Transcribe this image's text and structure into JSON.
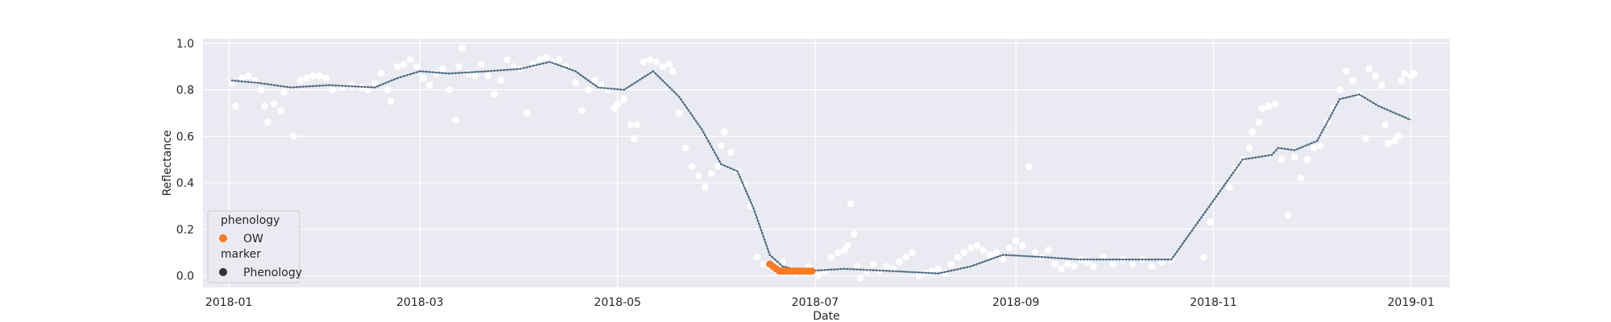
{
  "chart_data": {
    "type": "scatter",
    "title": "",
    "xlabel": "Date",
    "ylabel": "Reflectance",
    "xlim": [
      "2017-12-24",
      "2019-01-13"
    ],
    "ylim": [
      -0.05,
      1.02
    ],
    "grid": true,
    "background": "#eaeaf2",
    "x_ticks": [
      "2018-01",
      "2018-03",
      "2018-05",
      "2018-07",
      "2018-09",
      "2018-11",
      "2019-01"
    ],
    "y_ticks": [
      "0.0",
      "0.2",
      "0.4",
      "0.6",
      "0.8",
      "1.0"
    ],
    "legend": {
      "placement": "lower-left",
      "sections": [
        {
          "title": "phenology",
          "entries": [
            {
              "label": "OW",
              "color": "#f97b22",
              "marker": "circle"
            }
          ]
        },
        {
          "title": "marker",
          "entries": [
            {
              "label": "Phenology",
              "color": "#333333",
              "marker": "circle"
            }
          ]
        }
      ]
    },
    "series": [
      {
        "kind": "observations",
        "color": "#ffffff",
        "points": [
          [
            "2018-01-02",
            0.83
          ],
          [
            "2018-01-03",
            0.73
          ],
          [
            "2018-01-05",
            0.85
          ],
          [
            "2018-01-07",
            0.86
          ],
          [
            "2018-01-09",
            0.84
          ],
          [
            "2018-01-11",
            0.8
          ],
          [
            "2018-01-12",
            0.73
          ],
          [
            "2018-01-13",
            0.66
          ],
          [
            "2018-01-15",
            0.74
          ],
          [
            "2018-01-17",
            0.71
          ],
          [
            "2018-01-18",
            0.79
          ],
          [
            "2018-01-21",
            0.6
          ],
          [
            "2018-01-23",
            0.84
          ],
          [
            "2018-01-25",
            0.85
          ],
          [
            "2018-01-27",
            0.86
          ],
          [
            "2018-01-29",
            0.86
          ],
          [
            "2018-01-31",
            0.85
          ],
          [
            "2018-02-02",
            0.8
          ],
          [
            "2018-02-05",
            0.81
          ],
          [
            "2018-02-08",
            0.82
          ],
          [
            "2018-02-11",
            0.81
          ],
          [
            "2018-02-13",
            0.8
          ],
          [
            "2018-02-15",
            0.83
          ],
          [
            "2018-02-17",
            0.87
          ],
          [
            "2018-02-19",
            0.8
          ],
          [
            "2018-02-20",
            0.75
          ],
          [
            "2018-02-22",
            0.9
          ],
          [
            "2018-02-24",
            0.91
          ],
          [
            "2018-02-26",
            0.93
          ],
          [
            "2018-02-28",
            0.9
          ],
          [
            "2018-03-02",
            0.85
          ],
          [
            "2018-03-04",
            0.82
          ],
          [
            "2018-03-06",
            0.87
          ],
          [
            "2018-03-08",
            0.89
          ],
          [
            "2018-03-10",
            0.8
          ],
          [
            "2018-03-12",
            0.67
          ],
          [
            "2018-03-13",
            0.9
          ],
          [
            "2018-03-14",
            0.98
          ],
          [
            "2018-03-16",
            0.87
          ],
          [
            "2018-03-18",
            0.86
          ],
          [
            "2018-03-20",
            0.91
          ],
          [
            "2018-03-22",
            0.86
          ],
          [
            "2018-03-24",
            0.78
          ],
          [
            "2018-03-26",
            0.84
          ],
          [
            "2018-03-28",
            0.93
          ],
          [
            "2018-03-30",
            0.9
          ],
          [
            "2018-04-01",
            0.89
          ],
          [
            "2018-04-03",
            0.7
          ],
          [
            "2018-04-05",
            0.91
          ],
          [
            "2018-04-07",
            0.93
          ],
          [
            "2018-04-09",
            0.94
          ],
          [
            "2018-04-11",
            0.92
          ],
          [
            "2018-04-13",
            0.93
          ],
          [
            "2018-04-15",
            0.9
          ],
          [
            "2018-04-18",
            0.83
          ],
          [
            "2018-04-20",
            0.71
          ],
          [
            "2018-04-22",
            0.8
          ],
          [
            "2018-04-24",
            0.84
          ],
          [
            "2018-04-26",
            0.82
          ],
          [
            "2018-04-28",
            0.8
          ],
          [
            "2018-04-30",
            0.72
          ],
          [
            "2018-05-01",
            0.74
          ],
          [
            "2018-05-03",
            0.76
          ],
          [
            "2018-05-05",
            0.65
          ],
          [
            "2018-05-06",
            0.59
          ],
          [
            "2018-05-07",
            0.65
          ],
          [
            "2018-05-09",
            0.92
          ],
          [
            "2018-05-11",
            0.93
          ],
          [
            "2018-05-13",
            0.92
          ],
          [
            "2018-05-15",
            0.9
          ],
          [
            "2018-05-17",
            0.91
          ],
          [
            "2018-05-18",
            0.88
          ],
          [
            "2018-05-20",
            0.7
          ],
          [
            "2018-05-22",
            0.55
          ],
          [
            "2018-05-24",
            0.47
          ],
          [
            "2018-05-26",
            0.43
          ],
          [
            "2018-05-28",
            0.38
          ],
          [
            "2018-05-30",
            0.44
          ],
          [
            "2018-06-01",
            0.47
          ],
          [
            "2018-06-02",
            0.56
          ],
          [
            "2018-06-03",
            0.62
          ],
          [
            "2018-06-05",
            0.53
          ],
          [
            "2018-06-07",
            0.45
          ],
          [
            "2018-06-09",
            0.39
          ],
          [
            "2018-06-11",
            0.3
          ],
          [
            "2018-06-13",
            0.08
          ],
          [
            "2018-06-15",
            0.05
          ],
          [
            "2018-06-17",
            0.04
          ],
          [
            "2018-06-19",
            0.05
          ],
          [
            "2018-06-21",
            0.06
          ],
          [
            "2018-06-23",
            0.03
          ],
          [
            "2018-06-25",
            0.01
          ],
          [
            "2018-06-27",
            0.02
          ],
          [
            "2018-06-29",
            0.04
          ],
          [
            "2018-07-02",
            0.0
          ],
          [
            "2018-07-04",
            0.02
          ],
          [
            "2018-07-06",
            0.08
          ],
          [
            "2018-07-08",
            0.1
          ],
          [
            "2018-07-10",
            0.11
          ],
          [
            "2018-07-11",
            0.13
          ],
          [
            "2018-07-12",
            0.31
          ],
          [
            "2018-07-13",
            0.18
          ],
          [
            "2018-07-14",
            0.04
          ],
          [
            "2018-07-15",
            -0.01
          ],
          [
            "2018-07-17",
            0.02
          ],
          [
            "2018-07-19",
            0.05
          ],
          [
            "2018-07-21",
            0.02
          ],
          [
            "2018-07-23",
            0.04
          ],
          [
            "2018-07-25",
            0.03
          ],
          [
            "2018-07-27",
            0.06
          ],
          [
            "2018-07-29",
            0.08
          ],
          [
            "2018-07-31",
            0.1
          ],
          [
            "2018-08-02",
            0.0
          ],
          [
            "2018-08-04",
            0.01
          ],
          [
            "2018-08-06",
            0.02
          ],
          [
            "2018-08-08",
            0.03
          ],
          [
            "2018-08-10",
            0.01
          ],
          [
            "2018-08-12",
            0.05
          ],
          [
            "2018-08-14",
            0.08
          ],
          [
            "2018-08-16",
            0.1
          ],
          [
            "2018-08-18",
            0.12
          ],
          [
            "2018-08-20",
            0.13
          ],
          [
            "2018-08-22",
            0.11
          ],
          [
            "2018-08-24",
            0.09
          ],
          [
            "2018-08-26",
            0.1
          ],
          [
            "2018-08-28",
            0.07
          ],
          [
            "2018-08-30",
            0.12
          ],
          [
            "2018-09-01",
            0.15
          ],
          [
            "2018-09-03",
            0.13
          ],
          [
            "2018-09-05",
            0.47
          ],
          [
            "2018-09-07",
            0.1
          ],
          [
            "2018-09-09",
            0.08
          ],
          [
            "2018-09-11",
            0.11
          ],
          [
            "2018-09-13",
            0.05
          ],
          [
            "2018-09-15",
            0.03
          ],
          [
            "2018-09-17",
            0.05
          ],
          [
            "2018-09-19",
            0.04
          ],
          [
            "2018-09-21",
            0.07
          ],
          [
            "2018-09-23",
            0.06
          ],
          [
            "2018-09-25",
            0.04
          ],
          [
            "2018-09-28",
            0.08
          ],
          [
            "2018-10-01",
            0.05
          ],
          [
            "2018-10-04",
            0.07
          ],
          [
            "2018-10-07",
            0.05
          ],
          [
            "2018-10-10",
            0.07
          ],
          [
            "2018-10-13",
            0.04
          ],
          [
            "2018-10-16",
            0.06
          ],
          [
            "2018-10-19",
            0.07
          ],
          [
            "2018-10-29",
            0.08
          ],
          [
            "2018-10-31",
            0.23
          ],
          [
            "2018-11-06",
            0.38
          ],
          [
            "2018-11-08",
            0.46
          ],
          [
            "2018-11-10",
            0.5
          ],
          [
            "2018-11-12",
            0.55
          ],
          [
            "2018-11-13",
            0.62
          ],
          [
            "2018-11-15",
            0.66
          ],
          [
            "2018-11-16",
            0.72
          ],
          [
            "2018-11-18",
            0.73
          ],
          [
            "2018-11-20",
            0.74
          ],
          [
            "2018-11-22",
            0.5
          ],
          [
            "2018-11-24",
            0.26
          ],
          [
            "2018-11-26",
            0.51
          ],
          [
            "2018-11-28",
            0.42
          ],
          [
            "2018-11-30",
            0.5
          ],
          [
            "2018-12-02",
            0.55
          ],
          [
            "2018-12-04",
            0.56
          ],
          [
            "2018-12-06",
            0.66
          ],
          [
            "2018-12-08",
            0.72
          ],
          [
            "2018-12-10",
            0.8
          ],
          [
            "2018-12-12",
            0.88
          ],
          [
            "2018-12-14",
            0.84
          ],
          [
            "2018-12-16",
            0.78
          ],
          [
            "2018-12-18",
            0.59
          ],
          [
            "2018-12-19",
            0.89
          ],
          [
            "2018-12-21",
            0.86
          ],
          [
            "2018-12-23",
            0.82
          ],
          [
            "2018-12-24",
            0.65
          ],
          [
            "2018-12-25",
            0.57
          ],
          [
            "2018-12-27",
            0.58
          ],
          [
            "2018-12-28",
            0.6
          ],
          [
            "2018-12-29",
            0.84
          ],
          [
            "2018-12-30",
            0.87
          ],
          [
            "2019-01-01",
            0.86
          ],
          [
            "2019-01-02",
            0.87
          ]
        ]
      },
      {
        "kind": "smoothed-curve",
        "color": "#4c6b82",
        "points": [
          [
            "2018-01-02",
            0.84
          ],
          [
            "2018-01-10",
            0.83
          ],
          [
            "2018-01-20",
            0.81
          ],
          [
            "2018-02-01",
            0.82
          ],
          [
            "2018-02-15",
            0.81
          ],
          [
            "2018-02-22",
            0.85
          ],
          [
            "2018-03-01",
            0.88
          ],
          [
            "2018-03-10",
            0.87
          ],
          [
            "2018-03-22",
            0.88
          ],
          [
            "2018-04-01",
            0.89
          ],
          [
            "2018-04-10",
            0.92
          ],
          [
            "2018-04-18",
            0.88
          ],
          [
            "2018-04-25",
            0.81
          ],
          [
            "2018-05-03",
            0.8
          ],
          [
            "2018-05-12",
            0.88
          ],
          [
            "2018-05-20",
            0.77
          ],
          [
            "2018-05-27",
            0.63
          ],
          [
            "2018-06-02",
            0.48
          ],
          [
            "2018-06-07",
            0.45
          ],
          [
            "2018-06-12",
            0.29
          ],
          [
            "2018-06-17",
            0.09
          ],
          [
            "2018-06-21",
            0.04
          ],
          [
            "2018-06-28",
            0.02
          ],
          [
            "2018-07-10",
            0.03
          ],
          [
            "2018-07-25",
            0.02
          ],
          [
            "2018-08-08",
            0.01
          ],
          [
            "2018-08-18",
            0.04
          ],
          [
            "2018-08-28",
            0.09
          ],
          [
            "2018-09-10",
            0.08
          ],
          [
            "2018-09-20",
            0.07
          ],
          [
            "2018-10-10",
            0.07
          ],
          [
            "2018-10-19",
            0.07
          ],
          [
            "2018-11-10",
            0.5
          ],
          [
            "2018-11-19",
            0.52
          ],
          [
            "2018-11-21",
            0.55
          ],
          [
            "2018-11-26",
            0.54
          ],
          [
            "2018-12-03",
            0.58
          ],
          [
            "2018-12-10",
            0.76
          ],
          [
            "2018-12-16",
            0.78
          ],
          [
            "2018-12-22",
            0.73
          ],
          [
            "2019-01-01",
            0.67
          ]
        ]
      },
      {
        "kind": "phenology",
        "name": "OW",
        "color": "#f97b22",
        "points": [
          [
            "2018-06-17",
            0.05
          ],
          [
            "2018-06-18",
            0.04
          ],
          [
            "2018-06-19",
            0.03
          ],
          [
            "2018-06-20",
            0.02
          ],
          [
            "2018-06-21",
            0.02
          ],
          [
            "2018-06-22",
            0.02
          ],
          [
            "2018-06-23",
            0.02
          ],
          [
            "2018-06-24",
            0.02
          ],
          [
            "2018-06-25",
            0.02
          ],
          [
            "2018-06-26",
            0.02
          ],
          [
            "2018-06-27",
            0.02
          ],
          [
            "2018-06-28",
            0.02
          ],
          [
            "2018-06-29",
            0.02
          ],
          [
            "2018-06-30",
            0.02
          ]
        ]
      }
    ]
  }
}
